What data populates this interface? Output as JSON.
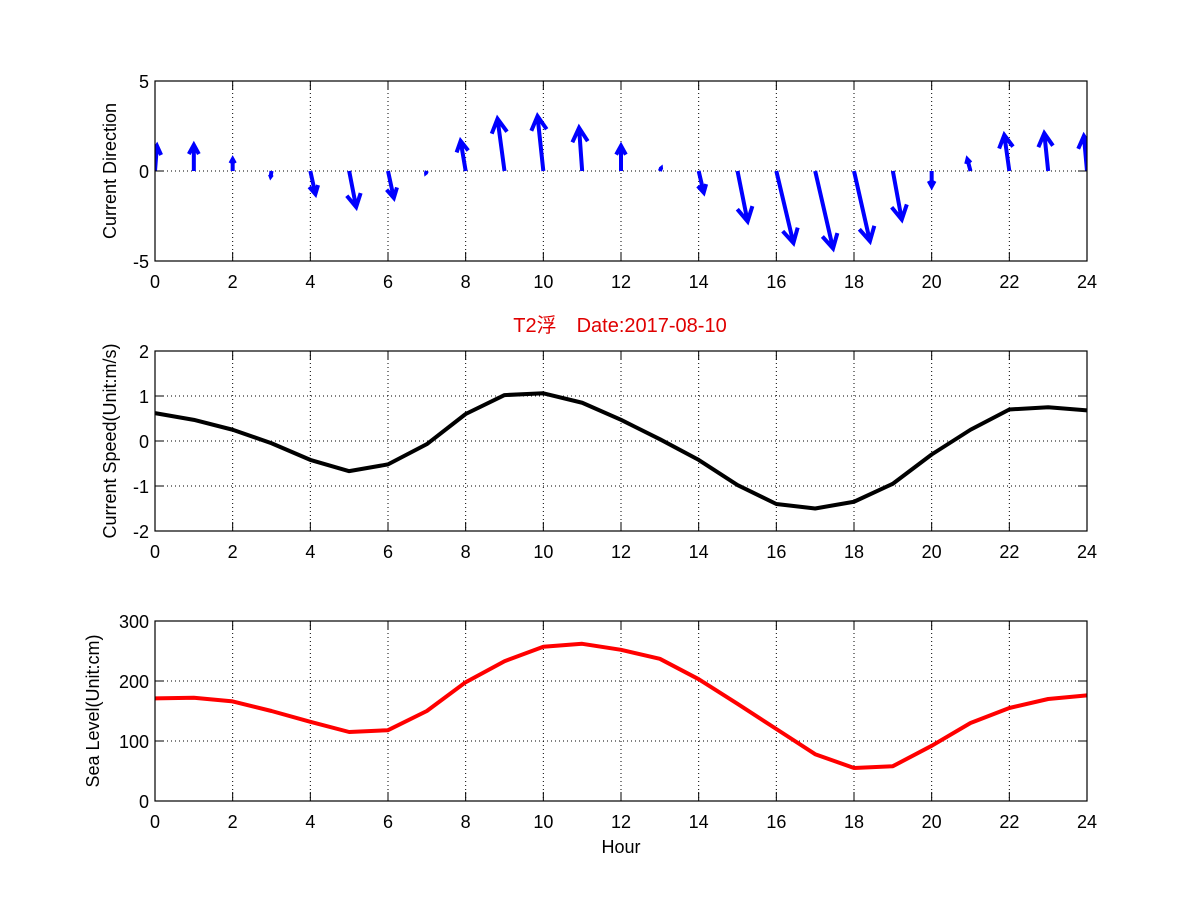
{
  "title": "T2浮　Date:2017-08-10",
  "colors": {
    "quiver": "#0000ff",
    "speed": "#000000",
    "sea_level": "#ff0000",
    "title": "#e00000"
  },
  "chart_data": [
    {
      "id": "direction",
      "type": "quiver",
      "ylabel": "Current Direction",
      "xlabel": "",
      "xlim": [
        0,
        24
      ],
      "ylim": [
        -5,
        5
      ],
      "xticks": [
        0,
        2,
        4,
        6,
        8,
        10,
        12,
        14,
        16,
        18,
        20,
        22,
        24
      ],
      "yticks": [
        5,
        0,
        -5
      ],
      "grid": true,
      "x": [
        0,
        1,
        2,
        3,
        4,
        5,
        6,
        7,
        8,
        9,
        10,
        11,
        12,
        13,
        14,
        15,
        16,
        17,
        18,
        19,
        20,
        21,
        22,
        23,
        24
      ],
      "u": [
        0.05,
        0,
        0,
        -0.02,
        0.13,
        0.18,
        0.15,
        -0.02,
        -0.13,
        -0.18,
        -0.15,
        -0.08,
        0,
        0.03,
        0.13,
        0.26,
        0.44,
        0.46,
        0.41,
        0.23,
        0,
        -0.08,
        -0.13,
        -0.1,
        -0.08
      ],
      "v": [
        1.4,
        1.45,
        0.65,
        -0.3,
        -1.28,
        -2.0,
        -1.5,
        -0.1,
        1.67,
        2.9,
        3.05,
        2.4,
        1.4,
        0.15,
        -1.2,
        -2.8,
        -4.0,
        -4.3,
        -3.9,
        -2.7,
        -0.85,
        0.65,
        2.0,
        2.1,
        1.95
      ]
    },
    {
      "id": "speed",
      "type": "line",
      "ylabel": "Current Speed(Unit:m/s)",
      "xlabel": "",
      "xlim": [
        0,
        24
      ],
      "ylim": [
        -2,
        2
      ],
      "xticks": [
        0,
        2,
        4,
        6,
        8,
        10,
        12,
        14,
        16,
        18,
        20,
        22,
        24
      ],
      "yticks": [
        2,
        1,
        0,
        -1,
        -2
      ],
      "grid": true,
      "x": [
        0,
        1,
        2,
        3,
        4,
        5,
        6,
        7,
        8,
        9,
        10,
        11,
        12,
        13,
        14,
        15,
        16,
        17,
        18,
        19,
        20,
        21,
        22,
        23,
        24
      ],
      "values": [
        0.62,
        0.47,
        0.25,
        -0.05,
        -0.42,
        -0.67,
        -0.52,
        -0.07,
        0.6,
        1.02,
        1.06,
        0.85,
        0.47,
        0.04,
        -0.42,
        -0.98,
        -1.4,
        -1.5,
        -1.35,
        -0.95,
        -0.3,
        0.25,
        0.7,
        0.75,
        0.68
      ]
    },
    {
      "id": "sealevel",
      "type": "line",
      "ylabel": "Sea Level(Unit:cm)",
      "xlabel": "Hour",
      "xlim": [
        0,
        24
      ],
      "ylim": [
        0,
        300
      ],
      "xticks": [
        0,
        2,
        4,
        6,
        8,
        10,
        12,
        14,
        16,
        18,
        20,
        22,
        24
      ],
      "yticks": [
        300,
        200,
        100,
        0
      ],
      "grid": true,
      "x": [
        0,
        1,
        2,
        3,
        4,
        5,
        6,
        7,
        8,
        9,
        10,
        11,
        12,
        13,
        14,
        15,
        16,
        17,
        18,
        19,
        20,
        21,
        22,
        23,
        24
      ],
      "values": [
        171,
        172,
        166,
        150,
        132,
        115,
        118,
        150,
        198,
        233,
        257,
        262,
        252,
        237,
        203,
        162,
        120,
        78,
        55,
        58,
        92,
        130,
        155,
        170,
        176
      ]
    }
  ]
}
